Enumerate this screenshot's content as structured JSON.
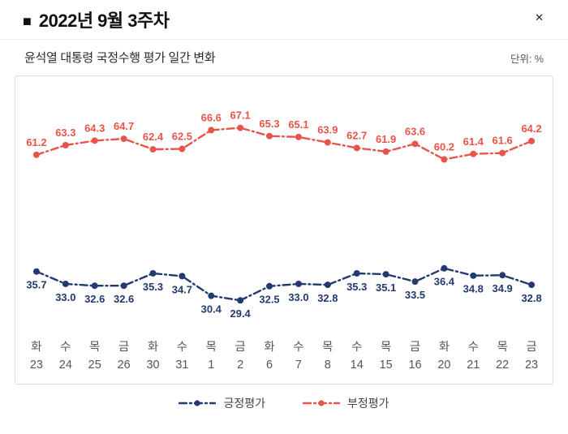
{
  "header": {
    "title_marker": "■",
    "title": "2022년 9월 3주차",
    "close_icon": "✕"
  },
  "subtitle": "윤석열 대통령 국정수행 평가 일간 변화",
  "unit_label": "단위: %",
  "colors": {
    "positive": "#223a70",
    "negative": "#e85449",
    "axis_text": "#555555",
    "box_border": "#dcdcdc"
  },
  "legend": [
    {
      "key": "positive",
      "label": "긍정평가",
      "color": "#223a70"
    },
    {
      "key": "negative",
      "label": "부정평가",
      "color": "#e85449"
    }
  ],
  "chart_data": {
    "type": "line",
    "title": "윤석열 대통령 국정수행 평가 일간 변화",
    "unit": "%",
    "line_style": "dash-dot",
    "grid": false,
    "legend_position": "bottom",
    "ylim": [
      25,
      72
    ],
    "categories_day": [
      "화",
      "수",
      "목",
      "금",
      "화",
      "수",
      "목",
      "금",
      "화",
      "수",
      "목",
      "수",
      "목",
      "금",
      "화",
      "수",
      "목",
      "금"
    ],
    "categories_date": [
      "23",
      "24",
      "25",
      "26",
      "30",
      "31",
      "1",
      "2",
      "6",
      "7",
      "8",
      "14",
      "15",
      "16",
      "20",
      "21",
      "22",
      "23"
    ],
    "series": [
      {
        "name": "긍정평가",
        "color": "#223a70",
        "label_position": "below",
        "values": [
          35.7,
          33.0,
          32.6,
          32.6,
          35.3,
          34.7,
          30.4,
          29.4,
          32.5,
          33.0,
          32.8,
          35.3,
          35.1,
          33.5,
          36.4,
          34.8,
          34.9,
          32.8
        ]
      },
      {
        "name": "부정평가",
        "color": "#e85449",
        "label_position": "above",
        "values": [
          61.2,
          63.3,
          64.3,
          64.7,
          62.4,
          62.5,
          66.6,
          67.1,
          65.3,
          65.1,
          63.9,
          62.7,
          61.9,
          63.6,
          60.2,
          61.4,
          61.6,
          64.2
        ]
      }
    ]
  }
}
